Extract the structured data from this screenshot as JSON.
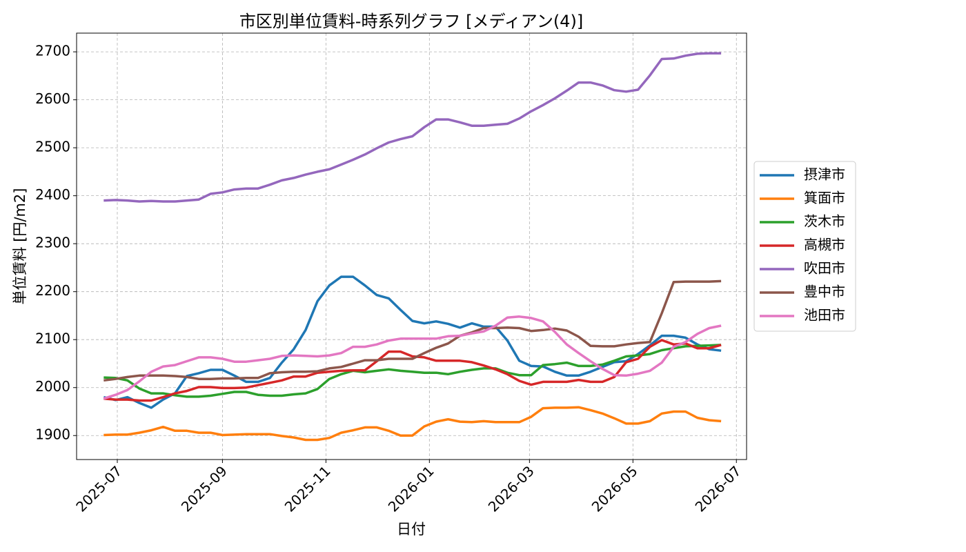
{
  "chart_data": {
    "type": "line",
    "title": "市区別単位賃料-時系列グラフ [メディアン(4)]",
    "xlabel": "日付",
    "ylabel": "単位賃料 [円/m2]",
    "x": [
      "2025-06-23",
      "2025-06-30",
      "2025-07-07",
      "2025-07-14",
      "2025-07-21",
      "2025-07-28",
      "2025-08-04",
      "2025-08-11",
      "2025-08-18",
      "2025-08-25",
      "2025-09-01",
      "2025-09-08",
      "2025-09-15",
      "2025-09-22",
      "2025-09-29",
      "2025-10-06",
      "2025-10-13",
      "2025-10-20",
      "2025-10-27",
      "2025-11-03",
      "2025-11-10",
      "2025-11-17",
      "2025-11-24",
      "2025-12-01",
      "2025-12-08",
      "2025-12-15",
      "2025-12-22",
      "2025-12-29",
      "2026-01-05",
      "2026-01-12",
      "2026-01-19",
      "2026-01-26",
      "2026-02-02",
      "2026-02-09",
      "2026-02-16",
      "2026-02-23",
      "2026-03-02",
      "2026-03-09",
      "2026-03-16",
      "2026-03-23",
      "2026-03-30",
      "2026-04-06",
      "2026-04-13",
      "2026-04-20",
      "2026-04-27",
      "2026-05-04",
      "2026-05-11",
      "2026-05-18",
      "2026-05-25",
      "2026-06-01",
      "2026-06-08",
      "2026-06-15",
      "2026-06-22"
    ],
    "xlim": [
      "2025-06-07",
      "2026-07-07"
    ],
    "xticks": [
      "2025-07",
      "2025-09",
      "2025-11",
      "2026-01",
      "2026-03",
      "2026-05",
      "2026-07"
    ],
    "ylim": [
      1850,
      2739
    ],
    "yticks": [
      1900,
      2000,
      2100,
      2200,
      2300,
      2400,
      2500,
      2600,
      2700
    ],
    "grid": true,
    "legend": "outside-right",
    "series": [
      {
        "name": "摂津市",
        "color": "#1f77b4",
        "values": [
          1980,
          1974,
          1980,
          1968,
          1958,
          1975,
          1988,
          2024,
          2030,
          2037,
          2037,
          2025,
          2012,
          2012,
          2020,
          2052,
          2080,
          2120,
          2180,
          2213,
          2231,
          2231,
          2213,
          2193,
          2186,
          2162,
          2139,
          2134,
          2138,
          2133,
          2125,
          2134,
          2127,
          2127,
          2098,
          2056,
          2045,
          2044,
          2033,
          2025,
          2025,
          2033,
          2043,
          2053,
          2055,
          2070,
          2088,
          2108,
          2108,
          2104,
          2090,
          2080,
          2077
        ]
      },
      {
        "name": "箕面市",
        "color": "#ff7f0e",
        "values": [
          1901,
          1902,
          1902,
          1906,
          1911,
          1918,
          1910,
          1910,
          1906,
          1906,
          1901,
          1902,
          1903,
          1903,
          1903,
          1899,
          1896,
          1891,
          1891,
          1895,
          1906,
          1911,
          1917,
          1917,
          1910,
          1900,
          1900,
          1919,
          1929,
          1934,
          1929,
          1928,
          1930,
          1928,
          1928,
          1928,
          1939,
          1957,
          1958,
          1958,
          1959,
          1953,
          1946,
          1936,
          1925,
          1925,
          1930,
          1946,
          1950,
          1950,
          1937,
          1932,
          1930
        ]
      },
      {
        "name": "茨木市",
        "color": "#2ca02c",
        "values": [
          2021,
          2020,
          2015,
          1998,
          1988,
          1988,
          1984,
          1981,
          1981,
          1983,
          1987,
          1991,
          1991,
          1985,
          1983,
          1983,
          1986,
          1988,
          1997,
          2018,
          2028,
          2035,
          2032,
          2035,
          2038,
          2035,
          2033,
          2031,
          2031,
          2028,
          2033,
          2037,
          2040,
          2040,
          2031,
          2026,
          2026,
          2047,
          2049,
          2052,
          2045,
          2045,
          2048,
          2056,
          2065,
          2067,
          2070,
          2078,
          2082,
          2086,
          2087,
          2088,
          2089
        ]
      },
      {
        "name": "高槻市",
        "color": "#d62728",
        "values": [
          1977,
          1975,
          1975,
          1973,
          1973,
          1980,
          1988,
          1993,
          2001,
          2001,
          1999,
          1999,
          2000,
          2005,
          2010,
          2015,
          2023,
          2023,
          2031,
          2033,
          2035,
          2036,
          2036,
          2055,
          2075,
          2075,
          2065,
          2063,
          2056,
          2056,
          2056,
          2053,
          2046,
          2038,
          2028,
          2014,
          2006,
          2012,
          2012,
          2012,
          2016,
          2012,
          2012,
          2022,
          2053,
          2060,
          2085,
          2099,
          2090,
          2092,
          2082,
          2082,
          2089
        ]
      },
      {
        "name": "吹田市",
        "color": "#9467bd",
        "values": [
          2390,
          2391,
          2390,
          2388,
          2389,
          2388,
          2388,
          2390,
          2392,
          2404,
          2407,
          2413,
          2415,
          2415,
          2423,
          2432,
          2437,
          2444,
          2450,
          2455,
          2465,
          2475,
          2486,
          2499,
          2511,
          2518,
          2524,
          2543,
          2559,
          2559,
          2553,
          2546,
          2546,
          2548,
          2550,
          2561,
          2576,
          2589,
          2603,
          2619,
          2636,
          2636,
          2630,
          2620,
          2617,
          2621,
          2651,
          2685,
          2686,
          2692,
          2696,
          2697,
          2697
        ]
      },
      {
        "name": "豊中市",
        "color": "#8c564b",
        "values": [
          2015,
          2018,
          2022,
          2025,
          2025,
          2025,
          2024,
          2022,
          2018,
          2018,
          2019,
          2019,
          2020,
          2020,
          2030,
          2032,
          2033,
          2033,
          2034,
          2040,
          2043,
          2050,
          2057,
          2057,
          2060,
          2060,
          2060,
          2072,
          2083,
          2092,
          2108,
          2115,
          2124,
          2124,
          2125,
          2124,
          2118,
          2120,
          2123,
          2119,
          2106,
          2087,
          2086,
          2086,
          2090,
          2093,
          2095,
          2155,
          2220,
          2221,
          2221,
          2221,
          2222
        ]
      },
      {
        "name": "池田市",
        "color": "#e377c2",
        "values": [
          1977,
          1985,
          1995,
          2013,
          2033,
          2044,
          2047,
          2055,
          2063,
          2063,
          2060,
          2054,
          2054,
          2057,
          2060,
          2066,
          2067,
          2066,
          2065,
          2067,
          2072,
          2085,
          2085,
          2090,
          2098,
          2102,
          2102,
          2102,
          2102,
          2107,
          2108,
          2113,
          2117,
          2129,
          2146,
          2148,
          2145,
          2138,
          2116,
          2090,
          2072,
          2055,
          2039,
          2026,
          2025,
          2029,
          2035,
          2052,
          2085,
          2095,
          2112,
          2124,
          2129
        ]
      }
    ]
  }
}
